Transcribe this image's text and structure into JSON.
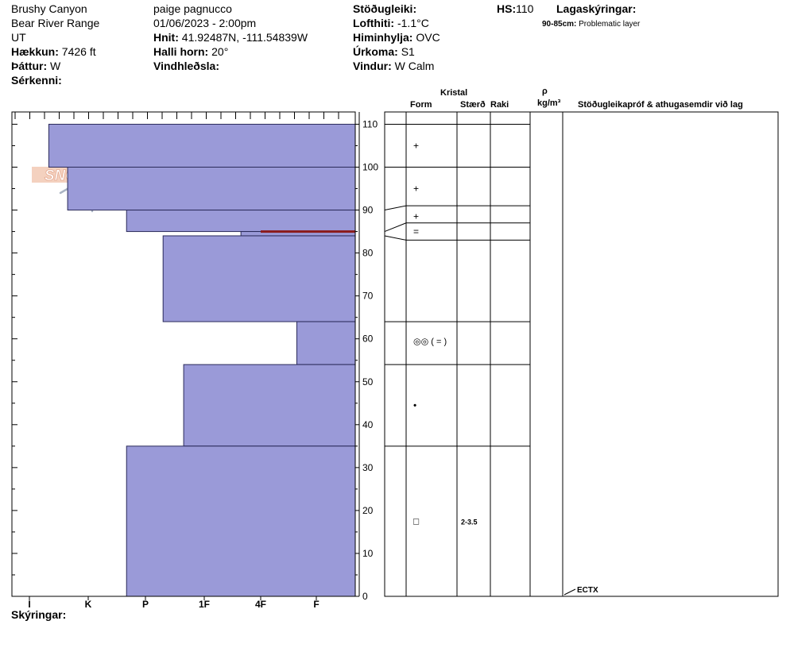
{
  "header": {
    "location": "Brushy Canyon",
    "range": "Bear River Range",
    "state": "UT",
    "elevation_label": "Hækkun:",
    "elevation_value": "7426 ft",
    "aspect_label": "Þáttur:",
    "aspect_value": "W",
    "features_label": "Sérkenni:",
    "observer": "paige pagnucco",
    "datetime": "01/06/2023 - 2:00pm",
    "coords_label": "Hnit:",
    "coords_value": "41.92487N, -111.54839W",
    "slope_label": "Halli horn:",
    "slope_value": "20°",
    "wind_loading_label": "Vindhleðsla:",
    "stability_label": "Stöðugleiki:",
    "air_temp_label": "Lofthiti:",
    "air_temp_value": "-1.1°C",
    "sky_label": "Himinhylja:",
    "sky_value": "OVC",
    "precip_label": "Úrkoma:",
    "precip_value": "S1",
    "wind_label": "Vindur:",
    "wind_value": "W Calm",
    "hs_label": "HS:",
    "hs_value": "110",
    "layer_notes_label": "Lagaskýringar:",
    "layer_note_range": "90-85cm:",
    "layer_note_text": "Problematic layer"
  },
  "columns": {
    "crystal": "Kristal",
    "form": "Form",
    "size": "Stærð",
    "moisture": "Raki",
    "rho": "ρ",
    "density_unit": "kg/m³",
    "tests": "Stöðugleikapróf & athugasemdir við lag"
  },
  "footer": {
    "comments_label": "Skýringar:"
  },
  "logo_text": "SNOW PILOT",
  "test_result": "ECTX",
  "colors": {
    "fill": "#9a9ad8",
    "stroke": "#2a2a5a",
    "problem": "#8b1a1a"
  },
  "chart_data": {
    "type": "bar",
    "orientation": "horizontal",
    "y_axis": {
      "ylim": [
        0,
        110
      ],
      "ticks": [
        0,
        10,
        20,
        30,
        40,
        50,
        60,
        70,
        80,
        90,
        100,
        110
      ]
    },
    "x_axis": {
      "categories": [
        "I",
        "K",
        "P",
        "1F",
        "4F",
        "F"
      ]
    },
    "layers": [
      {
        "top": 110,
        "bottom": 100,
        "hardness": 0.33,
        "form": "+"
      },
      {
        "top": 100,
        "bottom": 90,
        "hardness": 0.65,
        "form": "+"
      },
      {
        "top": 90,
        "bottom": 85,
        "hardness": 1.67,
        "form": "+"
      },
      {
        "top": 85,
        "bottom": 84,
        "hardness": 3.65,
        "form": "="
      },
      {
        "top": 84,
        "bottom": 64,
        "hardness": 2.3,
        "form": ""
      },
      {
        "top": 64,
        "bottom": 54,
        "hardness": 4.65,
        "form": "◎◎ ( = )"
      },
      {
        "top": 54,
        "bottom": 35,
        "hardness": 2.65,
        "form": "•"
      },
      {
        "top": 35,
        "bottom": 0,
        "hardness": 1.67,
        "form": "□",
        "size": "2-3.5"
      }
    ],
    "problem_depth": 85,
    "test_depth": 0
  }
}
